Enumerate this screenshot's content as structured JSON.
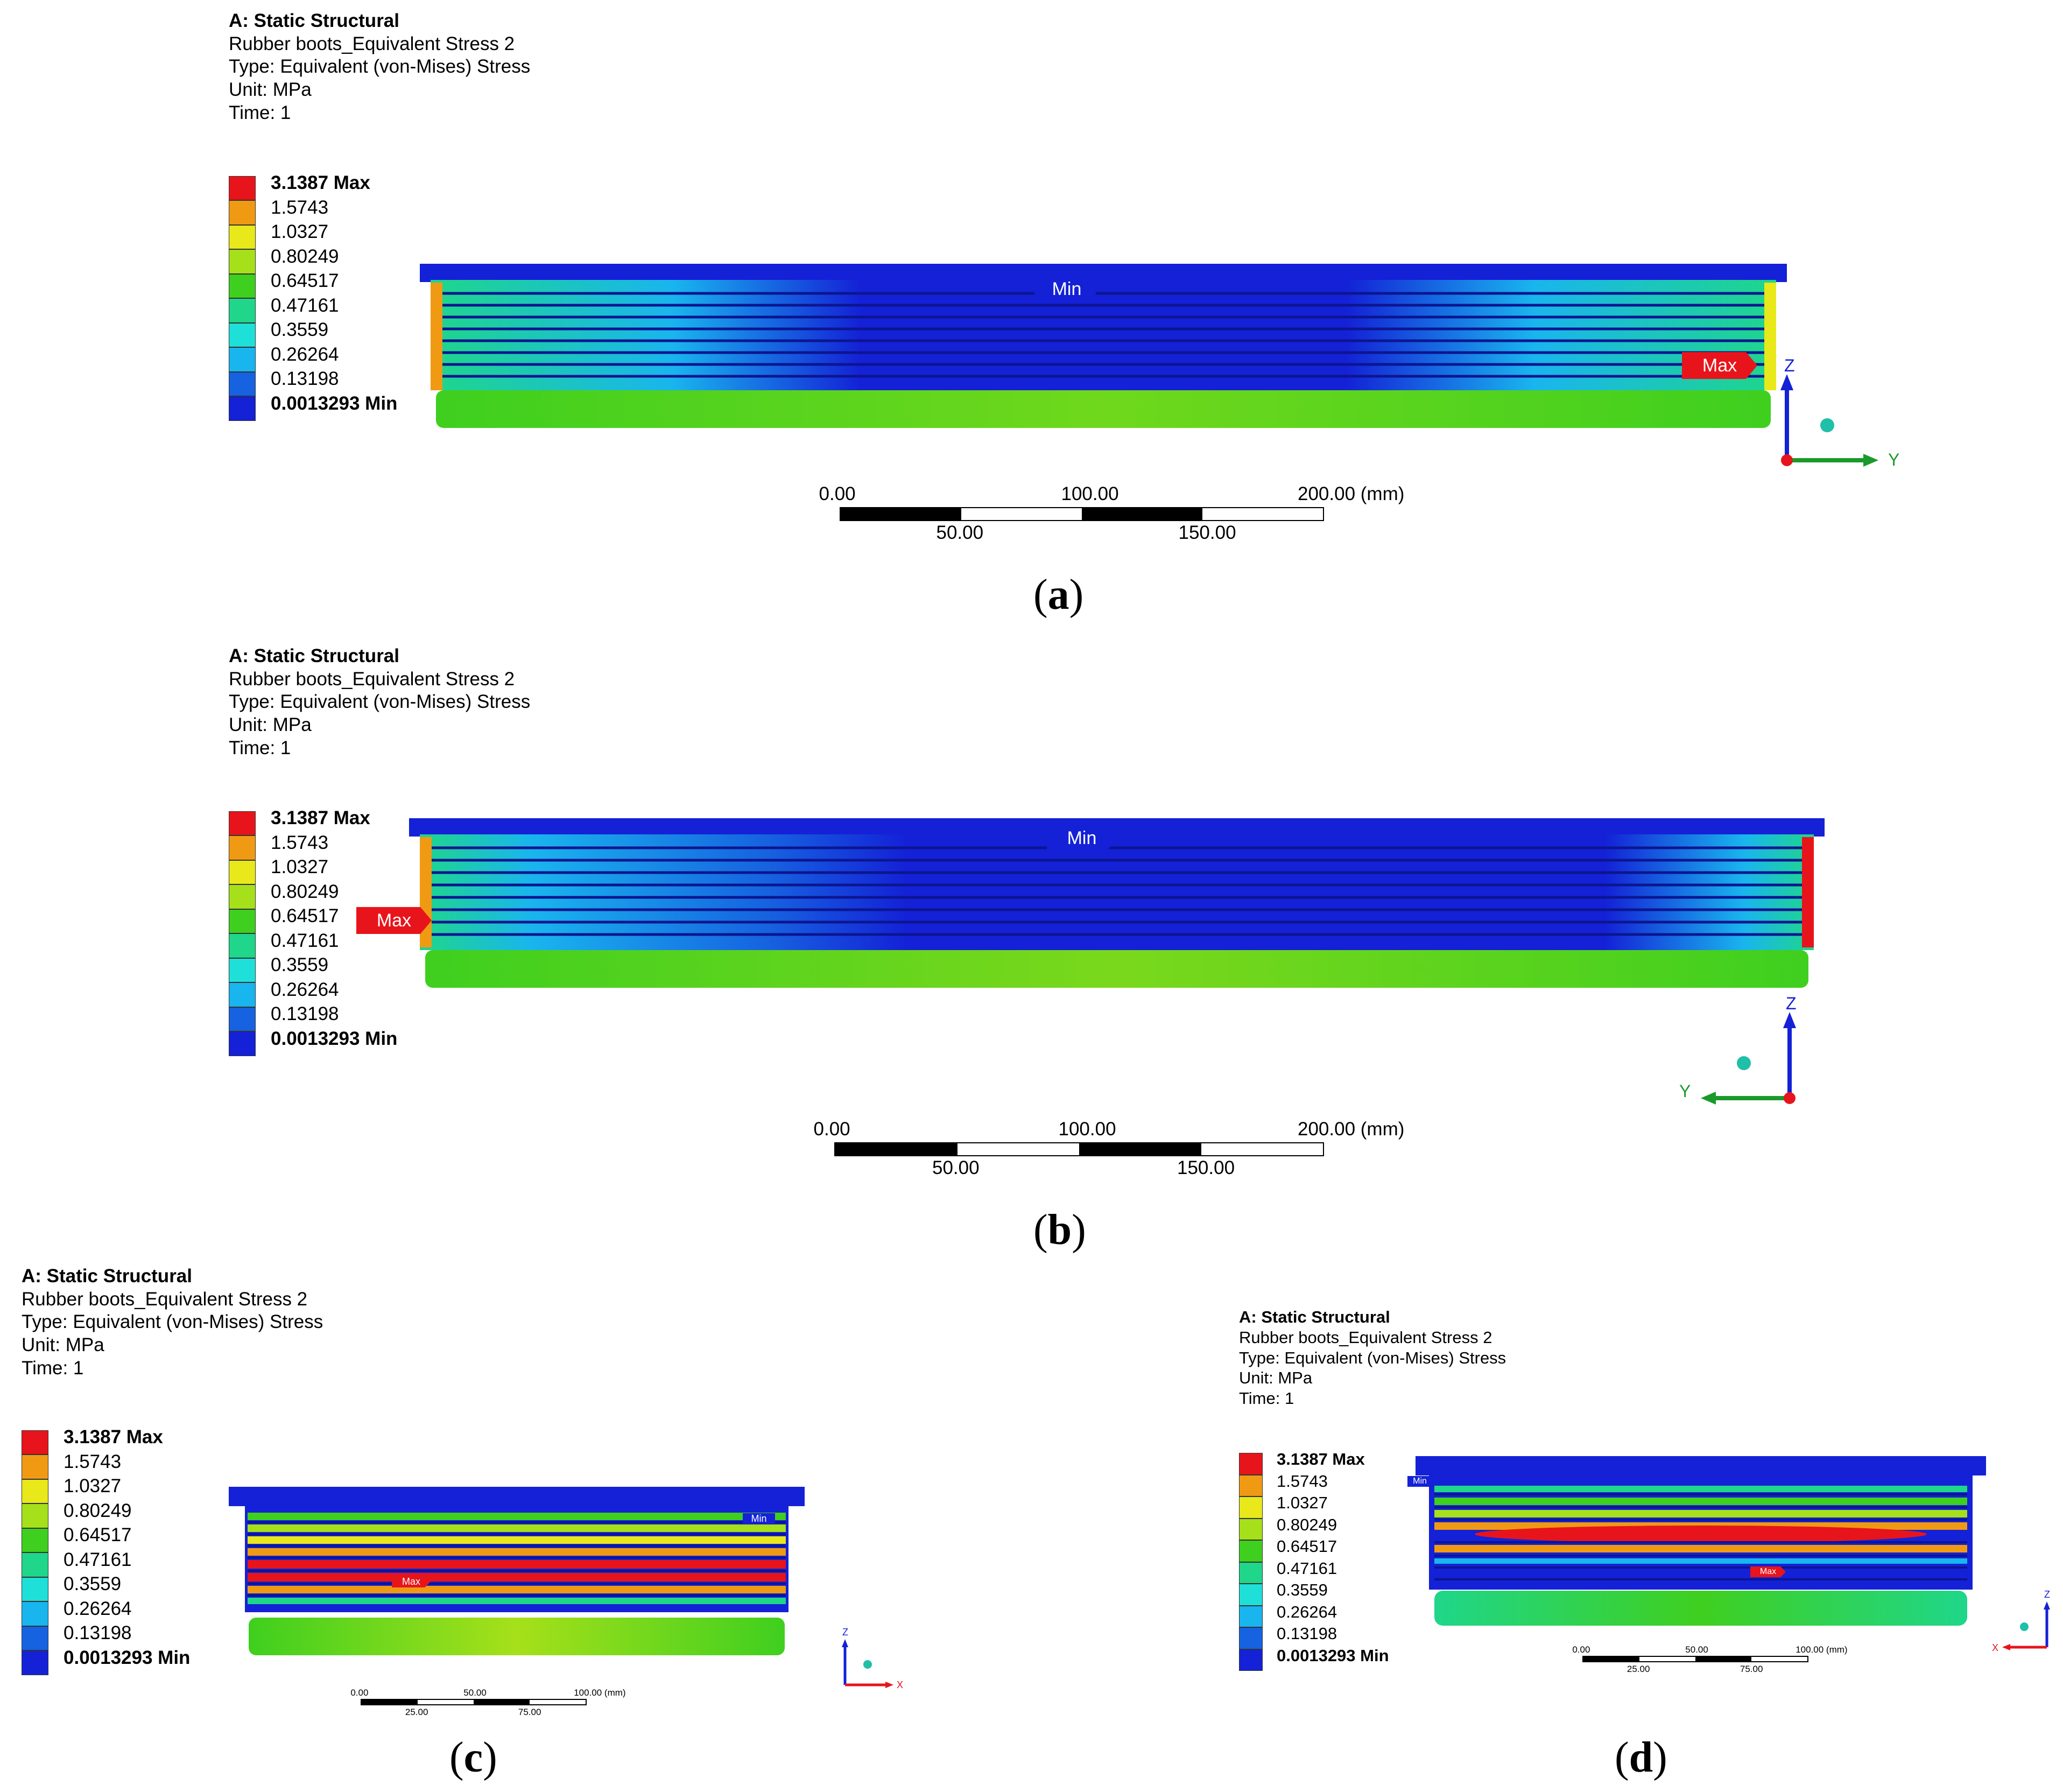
{
  "header": {
    "title": "A: Static Structural",
    "result_name": "Rubber boots_Equivalent Stress 2",
    "type": "Type: Equivalent (von-Mises) Stress",
    "unit": "Unit: MPa",
    "time": "Time: 1"
  },
  "legend": {
    "labels": [
      "3.1387 Max",
      "1.5743",
      "1.0327",
      "0.80249",
      "0.64517",
      "0.47161",
      "0.3559",
      "0.26264",
      "0.13198",
      "0.0013293 Min"
    ],
    "colors": [
      "#e8141b",
      "#f09a14",
      "#e8e81a",
      "#a6e01a",
      "#3fcf1f",
      "#1fd68a",
      "#1fe0d8",
      "#19b5ee",
      "#1662e0",
      "#1421d6"
    ]
  },
  "probes": {
    "max": "Max",
    "min": "Min"
  },
  "axes": {
    "z": "Z",
    "y": "Y",
    "x": "X"
  },
  "scale_large": {
    "top": [
      "0.00",
      "100.00",
      "200.00 (mm)"
    ],
    "bottom": [
      "50.00",
      "150.00"
    ]
  },
  "scale_small": {
    "top": [
      "0.00",
      "50.00",
      "100.00 (mm)"
    ],
    "bottom": [
      "25.00",
      "75.00"
    ]
  },
  "captions": {
    "a": {
      "open": "(",
      "letter": "a",
      "close": ")"
    },
    "b": {
      "open": "(",
      "letter": "b",
      "close": ")"
    },
    "c": {
      "open": "(",
      "letter": "c",
      "close": ")"
    },
    "d": {
      "open": "(",
      "letter": "d",
      "close": ")"
    }
  }
}
